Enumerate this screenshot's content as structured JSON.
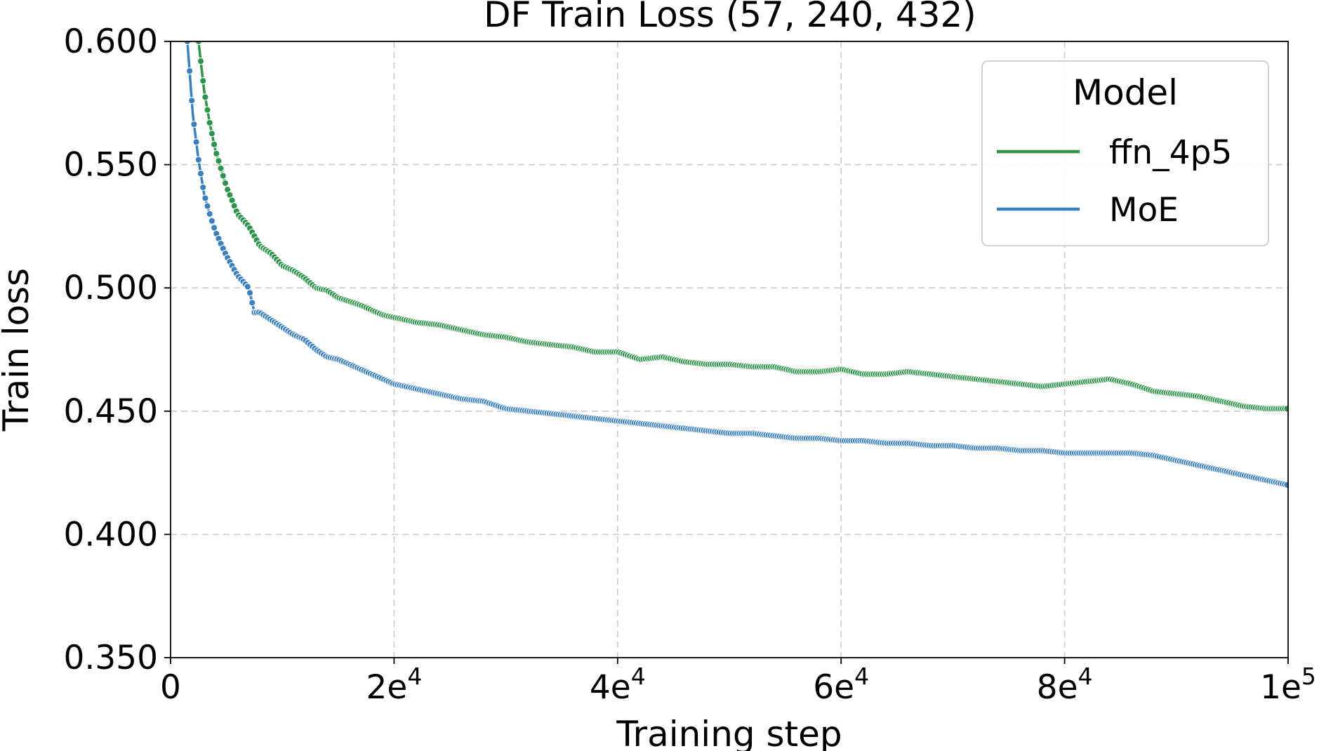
{
  "chart_data": {
    "type": "line",
    "title": "DF Train Loss (57, 240, 432)",
    "xlabel": "Training step",
    "ylabel": "Train loss",
    "xlim": [
      0,
      100000
    ],
    "ylim": [
      0.35,
      0.6
    ],
    "grid": true,
    "legend": {
      "title": "Model",
      "placement": "top-right"
    },
    "y_ticks": [
      "0.350",
      "0.400",
      "0.450",
      "0.500",
      "0.550",
      "0.600"
    ],
    "y_tick_values": [
      0.35,
      0.4,
      0.45,
      0.5,
      0.55,
      0.6
    ],
    "x_ticks": [
      {
        "value": 0,
        "base": "0",
        "exp": ""
      },
      {
        "value": 20000,
        "base": "2e",
        "exp": "4"
      },
      {
        "value": 40000,
        "base": "4e",
        "exp": "4"
      },
      {
        "value": 60000,
        "base": "6e",
        "exp": "4"
      },
      {
        "value": 80000,
        "base": "8e",
        "exp": "4"
      },
      {
        "value": 100000,
        "base": "1e",
        "exp": "5"
      }
    ],
    "series": [
      {
        "name": "ffn_4p5",
        "color": "#2e9449",
        "x": [
          1500,
          2500,
          3000,
          3500,
          4000,
          5000,
          6000,
          7000,
          8000,
          9000,
          10000,
          11000,
          12000,
          13000,
          14000,
          15000,
          17000,
          19000,
          20000,
          22000,
          24000,
          26000,
          28000,
          30000,
          32000,
          34000,
          36000,
          38000,
          40000,
          42000,
          44000,
          46000,
          48000,
          50000,
          52000,
          54000,
          56000,
          58000,
          60000,
          62000,
          64000,
          66000,
          68000,
          70000,
          72000,
          74000,
          76000,
          78000,
          80000,
          82000,
          84000,
          86000,
          88000,
          90000,
          92000,
          94000,
          96000,
          98000,
          100000
        ],
        "values": [
          0.625,
          0.6,
          0.58,
          0.567,
          0.556,
          0.541,
          0.53,
          0.525,
          0.517,
          0.514,
          0.509,
          0.507,
          0.504,
          0.5,
          0.499,
          0.496,
          0.493,
          0.489,
          0.488,
          0.486,
          0.485,
          0.483,
          0.481,
          0.48,
          0.478,
          0.477,
          0.476,
          0.474,
          0.474,
          0.471,
          0.472,
          0.47,
          0.469,
          0.469,
          0.468,
          0.468,
          0.466,
          0.466,
          0.467,
          0.465,
          0.465,
          0.466,
          0.465,
          0.464,
          0.463,
          0.462,
          0.461,
          0.46,
          0.461,
          0.462,
          0.463,
          0.461,
          0.458,
          0.457,
          0.456,
          0.454,
          0.452,
          0.451,
          0.451
        ]
      },
      {
        "name": "MoE",
        "color": "#3a80bf",
        "x": [
          1500,
          2000,
          2500,
          3000,
          3500,
          4000,
          5000,
          6000,
          7000,
          7500,
          8000,
          9000,
          10000,
          11000,
          12000,
          13000,
          14000,
          15000,
          17000,
          19000,
          20000,
          22000,
          24000,
          26000,
          28000,
          30000,
          32000,
          34000,
          36000,
          38000,
          40000,
          42000,
          44000,
          46000,
          48000,
          50000,
          52000,
          54000,
          56000,
          58000,
          60000,
          62000,
          64000,
          66000,
          68000,
          70000,
          72000,
          74000,
          76000,
          78000,
          80000,
          82000,
          84000,
          86000,
          88000,
          90000,
          92000,
          94000,
          96000,
          98000,
          100000
        ],
        "values": [
          0.6,
          0.57,
          0.552,
          0.538,
          0.53,
          0.523,
          0.513,
          0.505,
          0.5,
          0.49,
          0.49,
          0.487,
          0.484,
          0.481,
          0.479,
          0.475,
          0.472,
          0.471,
          0.467,
          0.463,
          0.461,
          0.459,
          0.457,
          0.455,
          0.454,
          0.451,
          0.45,
          0.449,
          0.448,
          0.447,
          0.446,
          0.445,
          0.444,
          0.443,
          0.442,
          0.441,
          0.441,
          0.44,
          0.439,
          0.439,
          0.438,
          0.438,
          0.437,
          0.437,
          0.436,
          0.436,
          0.435,
          0.435,
          0.434,
          0.434,
          0.433,
          0.433,
          0.433,
          0.433,
          0.432,
          0.43,
          0.428,
          0.426,
          0.424,
          0.422,
          0.42
        ]
      }
    ]
  }
}
